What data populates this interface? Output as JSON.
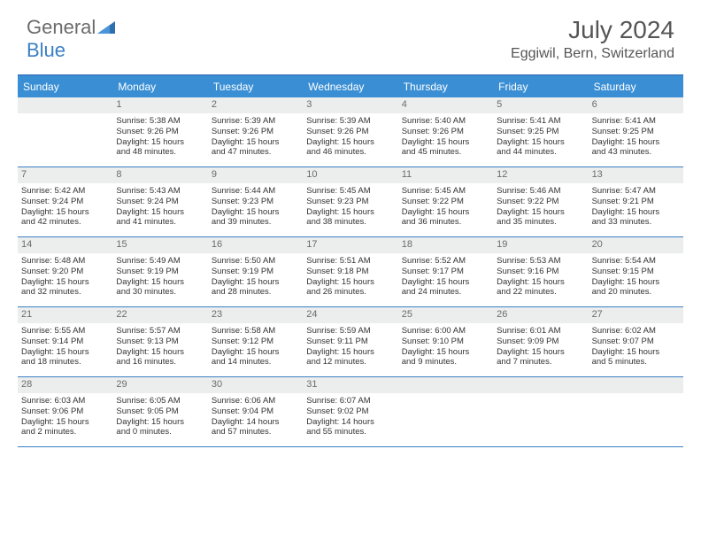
{
  "brand": {
    "part1": "General",
    "part2": "Blue"
  },
  "title": "July 2024",
  "location": "Eggiwil, Bern, Switzerland",
  "colors": {
    "header_bg": "#3a8fd4",
    "border": "#3a7fc4",
    "daynum_bg": "#eceded",
    "text": "#333333",
    "muted": "#6b6b6b"
  },
  "dayNames": [
    "Sunday",
    "Monday",
    "Tuesday",
    "Wednesday",
    "Thursday",
    "Friday",
    "Saturday"
  ],
  "weeks": [
    [
      {
        "day": "",
        "empty": true
      },
      {
        "day": "1",
        "sunrise": "Sunrise: 5:38 AM",
        "sunset": "Sunset: 9:26 PM",
        "daylight1": "Daylight: 15 hours",
        "daylight2": "and 48 minutes."
      },
      {
        "day": "2",
        "sunrise": "Sunrise: 5:39 AM",
        "sunset": "Sunset: 9:26 PM",
        "daylight1": "Daylight: 15 hours",
        "daylight2": "and 47 minutes."
      },
      {
        "day": "3",
        "sunrise": "Sunrise: 5:39 AM",
        "sunset": "Sunset: 9:26 PM",
        "daylight1": "Daylight: 15 hours",
        "daylight2": "and 46 minutes."
      },
      {
        "day": "4",
        "sunrise": "Sunrise: 5:40 AM",
        "sunset": "Sunset: 9:26 PM",
        "daylight1": "Daylight: 15 hours",
        "daylight2": "and 45 minutes."
      },
      {
        "day": "5",
        "sunrise": "Sunrise: 5:41 AM",
        "sunset": "Sunset: 9:25 PM",
        "daylight1": "Daylight: 15 hours",
        "daylight2": "and 44 minutes."
      },
      {
        "day": "6",
        "sunrise": "Sunrise: 5:41 AM",
        "sunset": "Sunset: 9:25 PM",
        "daylight1": "Daylight: 15 hours",
        "daylight2": "and 43 minutes."
      }
    ],
    [
      {
        "day": "7",
        "sunrise": "Sunrise: 5:42 AM",
        "sunset": "Sunset: 9:24 PM",
        "daylight1": "Daylight: 15 hours",
        "daylight2": "and 42 minutes."
      },
      {
        "day": "8",
        "sunrise": "Sunrise: 5:43 AM",
        "sunset": "Sunset: 9:24 PM",
        "daylight1": "Daylight: 15 hours",
        "daylight2": "and 41 minutes."
      },
      {
        "day": "9",
        "sunrise": "Sunrise: 5:44 AM",
        "sunset": "Sunset: 9:23 PM",
        "daylight1": "Daylight: 15 hours",
        "daylight2": "and 39 minutes."
      },
      {
        "day": "10",
        "sunrise": "Sunrise: 5:45 AM",
        "sunset": "Sunset: 9:23 PM",
        "daylight1": "Daylight: 15 hours",
        "daylight2": "and 38 minutes."
      },
      {
        "day": "11",
        "sunrise": "Sunrise: 5:45 AM",
        "sunset": "Sunset: 9:22 PM",
        "daylight1": "Daylight: 15 hours",
        "daylight2": "and 36 minutes."
      },
      {
        "day": "12",
        "sunrise": "Sunrise: 5:46 AM",
        "sunset": "Sunset: 9:22 PM",
        "daylight1": "Daylight: 15 hours",
        "daylight2": "and 35 minutes."
      },
      {
        "day": "13",
        "sunrise": "Sunrise: 5:47 AM",
        "sunset": "Sunset: 9:21 PM",
        "daylight1": "Daylight: 15 hours",
        "daylight2": "and 33 minutes."
      }
    ],
    [
      {
        "day": "14",
        "sunrise": "Sunrise: 5:48 AM",
        "sunset": "Sunset: 9:20 PM",
        "daylight1": "Daylight: 15 hours",
        "daylight2": "and 32 minutes."
      },
      {
        "day": "15",
        "sunrise": "Sunrise: 5:49 AM",
        "sunset": "Sunset: 9:19 PM",
        "daylight1": "Daylight: 15 hours",
        "daylight2": "and 30 minutes."
      },
      {
        "day": "16",
        "sunrise": "Sunrise: 5:50 AM",
        "sunset": "Sunset: 9:19 PM",
        "daylight1": "Daylight: 15 hours",
        "daylight2": "and 28 minutes."
      },
      {
        "day": "17",
        "sunrise": "Sunrise: 5:51 AM",
        "sunset": "Sunset: 9:18 PM",
        "daylight1": "Daylight: 15 hours",
        "daylight2": "and 26 minutes."
      },
      {
        "day": "18",
        "sunrise": "Sunrise: 5:52 AM",
        "sunset": "Sunset: 9:17 PM",
        "daylight1": "Daylight: 15 hours",
        "daylight2": "and 24 minutes."
      },
      {
        "day": "19",
        "sunrise": "Sunrise: 5:53 AM",
        "sunset": "Sunset: 9:16 PM",
        "daylight1": "Daylight: 15 hours",
        "daylight2": "and 22 minutes."
      },
      {
        "day": "20",
        "sunrise": "Sunrise: 5:54 AM",
        "sunset": "Sunset: 9:15 PM",
        "daylight1": "Daylight: 15 hours",
        "daylight2": "and 20 minutes."
      }
    ],
    [
      {
        "day": "21",
        "sunrise": "Sunrise: 5:55 AM",
        "sunset": "Sunset: 9:14 PM",
        "daylight1": "Daylight: 15 hours",
        "daylight2": "and 18 minutes."
      },
      {
        "day": "22",
        "sunrise": "Sunrise: 5:57 AM",
        "sunset": "Sunset: 9:13 PM",
        "daylight1": "Daylight: 15 hours",
        "daylight2": "and 16 minutes."
      },
      {
        "day": "23",
        "sunrise": "Sunrise: 5:58 AM",
        "sunset": "Sunset: 9:12 PM",
        "daylight1": "Daylight: 15 hours",
        "daylight2": "and 14 minutes."
      },
      {
        "day": "24",
        "sunrise": "Sunrise: 5:59 AM",
        "sunset": "Sunset: 9:11 PM",
        "daylight1": "Daylight: 15 hours",
        "daylight2": "and 12 minutes."
      },
      {
        "day": "25",
        "sunrise": "Sunrise: 6:00 AM",
        "sunset": "Sunset: 9:10 PM",
        "daylight1": "Daylight: 15 hours",
        "daylight2": "and 9 minutes."
      },
      {
        "day": "26",
        "sunrise": "Sunrise: 6:01 AM",
        "sunset": "Sunset: 9:09 PM",
        "daylight1": "Daylight: 15 hours",
        "daylight2": "and 7 minutes."
      },
      {
        "day": "27",
        "sunrise": "Sunrise: 6:02 AM",
        "sunset": "Sunset: 9:07 PM",
        "daylight1": "Daylight: 15 hours",
        "daylight2": "and 5 minutes."
      }
    ],
    [
      {
        "day": "28",
        "sunrise": "Sunrise: 6:03 AM",
        "sunset": "Sunset: 9:06 PM",
        "daylight1": "Daylight: 15 hours",
        "daylight2": "and 2 minutes."
      },
      {
        "day": "29",
        "sunrise": "Sunrise: 6:05 AM",
        "sunset": "Sunset: 9:05 PM",
        "daylight1": "Daylight: 15 hours",
        "daylight2": "and 0 minutes."
      },
      {
        "day": "30",
        "sunrise": "Sunrise: 6:06 AM",
        "sunset": "Sunset: 9:04 PM",
        "daylight1": "Daylight: 14 hours",
        "daylight2": "and 57 minutes."
      },
      {
        "day": "31",
        "sunrise": "Sunrise: 6:07 AM",
        "sunset": "Sunset: 9:02 PM",
        "daylight1": "Daylight: 14 hours",
        "daylight2": "and 55 minutes."
      },
      {
        "day": "",
        "empty": true
      },
      {
        "day": "",
        "empty": true
      },
      {
        "day": "",
        "empty": true
      }
    ]
  ]
}
